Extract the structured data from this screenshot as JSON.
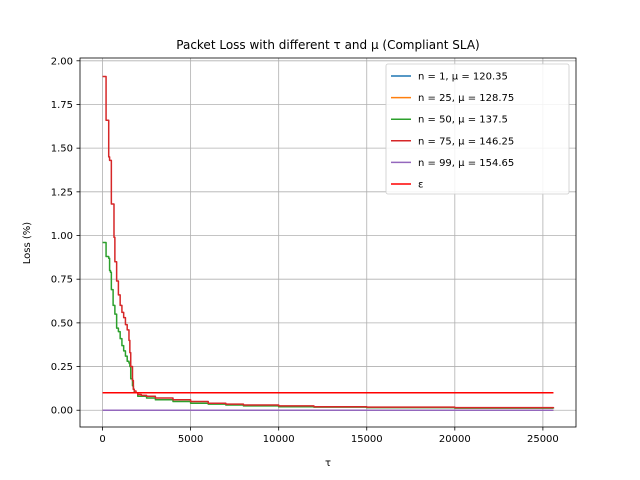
{
  "chart_data": {
    "type": "line",
    "title": "Packet Loss with different τ and μ (Compliant SLA)",
    "xlabel": "τ",
    "ylabel": "Loss (%)",
    "xlim": [
      -1280,
      26880
    ],
    "ylim": [
      -0.096,
      2.016
    ],
    "grid": true,
    "legend_position": "top-right",
    "x_ticks": [
      0,
      5000,
      10000,
      15000,
      20000,
      25000
    ],
    "x_tick_labels": [
      "0",
      "5000",
      "10000",
      "15000",
      "20000",
      "25000"
    ],
    "y_ticks": [
      0.0,
      0.25,
      0.5,
      0.75,
      1.0,
      1.25,
      1.5,
      1.75,
      2.0
    ],
    "y_tick_labels": [
      "0.00",
      "0.25",
      "0.50",
      "0.75",
      "1.00",
      "1.25",
      "1.50",
      "1.75",
      "2.00"
    ],
    "series": [
      {
        "name": "n = 1, μ = 120.35",
        "color": "#1f77b4",
        "x": [
          0,
          25600
        ],
        "y": [
          0.0,
          0.0
        ]
      },
      {
        "name": "n = 25, μ = 128.75",
        "color": "#ff7f0e",
        "x": [
          0,
          25600
        ],
        "y": [
          0.0,
          0.0
        ]
      },
      {
        "name": "n = 50, μ = 137.5",
        "color": "#2ca02c",
        "x": [
          0,
          150,
          200,
          350,
          400,
          450,
          500,
          600,
          700,
          800,
          900,
          1000,
          1100,
          1200,
          1300,
          1400,
          1500,
          1550,
          1600,
          1700,
          1750,
          1800,
          2000,
          2500,
          3000,
          4000,
          5000,
          6000,
          7000,
          8000,
          10000,
          12000,
          15000,
          20000,
          25600
        ],
        "y": [
          0.96,
          0.96,
          0.88,
          0.87,
          0.8,
          0.79,
          0.69,
          0.6,
          0.55,
          0.47,
          0.45,
          0.41,
          0.37,
          0.34,
          0.31,
          0.28,
          0.27,
          0.25,
          0.18,
          0.14,
          0.12,
          0.1,
          0.08,
          0.07,
          0.06,
          0.05,
          0.04,
          0.035,
          0.03,
          0.025,
          0.02,
          0.018,
          0.015,
          0.012,
          0.01
        ]
      },
      {
        "name": "n = 75, μ = 146.25",
        "color": "#d62728",
        "x": [
          0,
          150,
          200,
          300,
          350,
          400,
          450,
          500,
          550,
          650,
          700,
          800,
          900,
          1000,
          1100,
          1200,
          1300,
          1400,
          1500,
          1550,
          1600,
          1700,
          1750,
          1800,
          1900,
          2000,
          2200,
          2500,
          3000,
          4000,
          5000,
          6000,
          7000,
          8000,
          10000,
          12000,
          15000,
          20000,
          25600
        ],
        "y": [
          1.91,
          1.91,
          1.66,
          1.66,
          1.45,
          1.43,
          1.43,
          1.18,
          1.18,
          0.99,
          0.85,
          0.74,
          0.66,
          0.6,
          0.56,
          0.53,
          0.49,
          0.46,
          0.4,
          0.33,
          0.25,
          0.17,
          0.12,
          0.11,
          0.1,
          0.09,
          0.085,
          0.08,
          0.07,
          0.06,
          0.05,
          0.04,
          0.035,
          0.03,
          0.025,
          0.02,
          0.018,
          0.015,
          0.012
        ]
      },
      {
        "name": "n = 99, μ = 154.65",
        "color": "#9467bd",
        "x": [
          0,
          25600
        ],
        "y": [
          0.0,
          0.0
        ]
      },
      {
        "name": "ε",
        "color": "#ff0000",
        "x": [
          0,
          25600
        ],
        "y": [
          0.1,
          0.1
        ]
      }
    ]
  }
}
